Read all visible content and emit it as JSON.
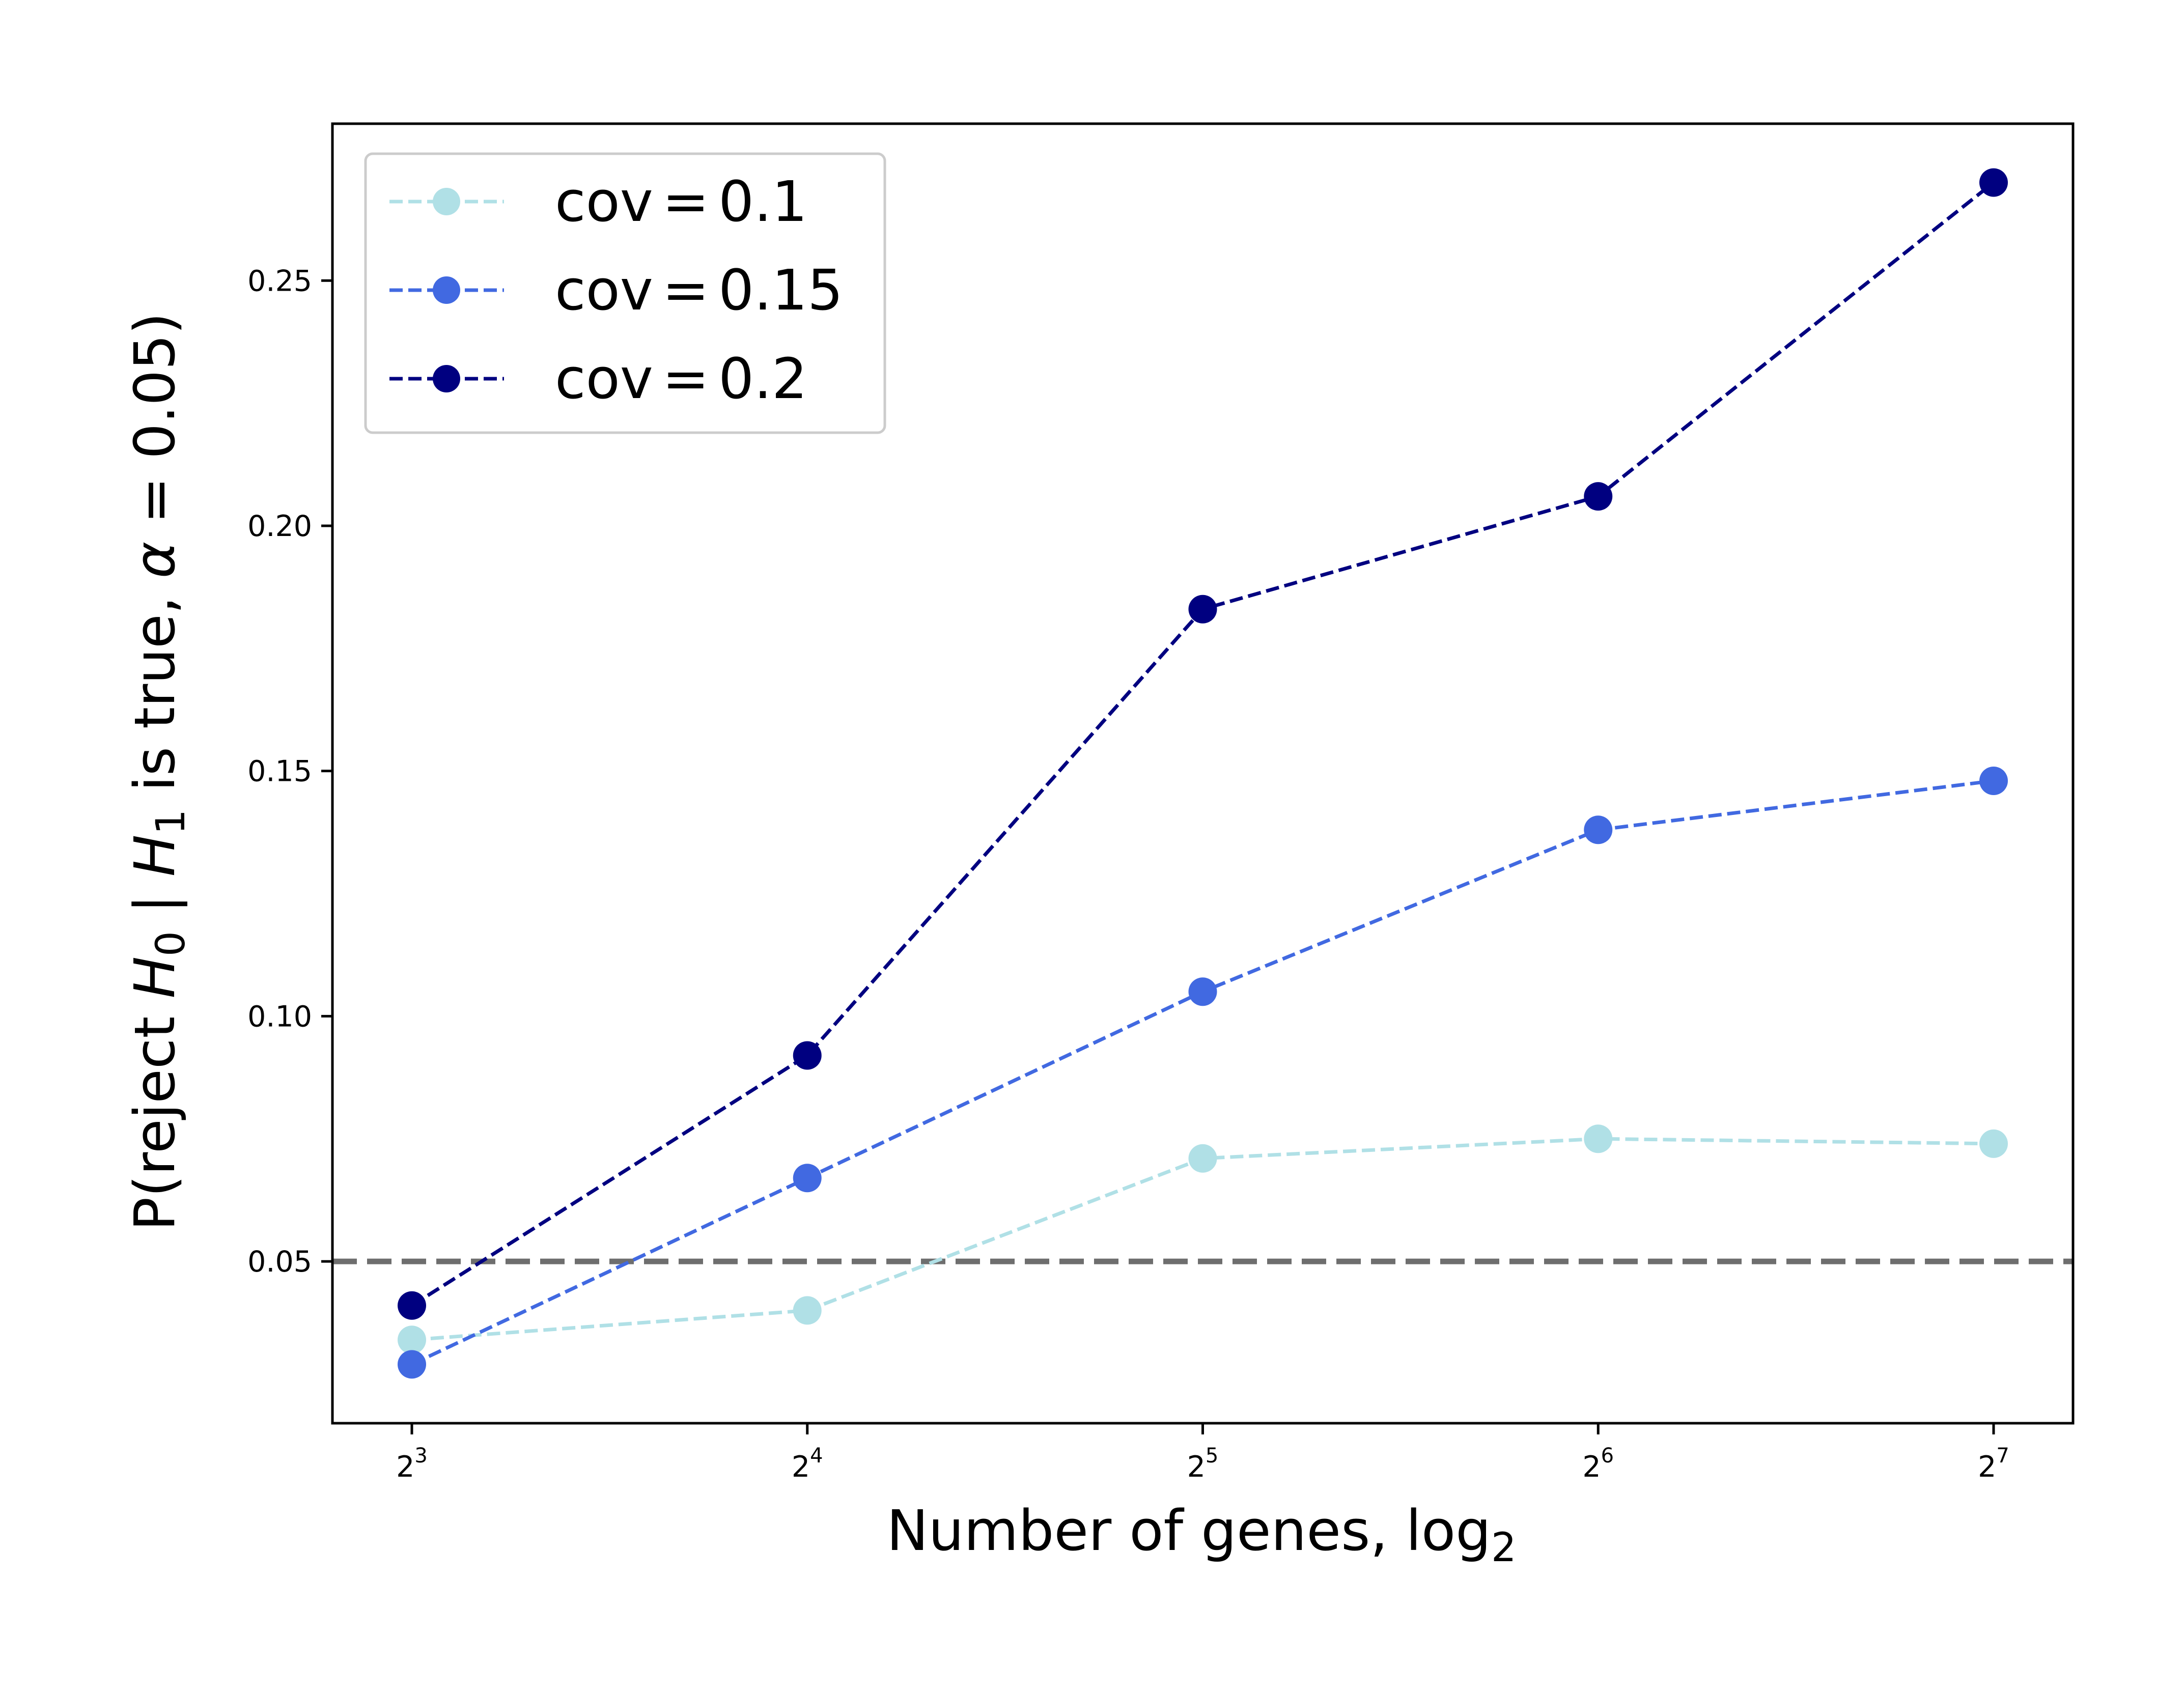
{
  "chart_data": {
    "type": "line",
    "x_scale": "log2",
    "x": [
      8,
      16,
      32,
      64,
      128
    ],
    "x_tick_labels": [
      {
        "base": "2",
        "exp": "3"
      },
      {
        "base": "2",
        "exp": "4"
      },
      {
        "base": "2",
        "exp": "5"
      },
      {
        "base": "2",
        "exp": "6"
      },
      {
        "base": "2",
        "exp": "7"
      }
    ],
    "xlabel": {
      "text": "Number of genes, log",
      "subscript": "2"
    },
    "ylabel": {
      "pre": "P(reject ",
      "h0": "H",
      "h0_sub": "0",
      "mid": " | ",
      "h1": "H",
      "h1_sub": "1",
      "mid2": " is true, ",
      "alpha": "α",
      "post": " = 0.05)"
    },
    "ylim": [
      0.017,
      0.282
    ],
    "y_ticks": [
      "0.05",
      "0.10",
      "0.15",
      "0.20",
      "0.25"
    ],
    "reference_line": {
      "y": 0.05,
      "color": "#6e6e6e",
      "style": "dashed"
    },
    "legend_position": "upper-left",
    "grid": false,
    "series": [
      {
        "name": "cov = 0.1",
        "label_prefix": "cov",
        "label_op": "=",
        "label_value": "0.1",
        "color": "#b0e0e6",
        "values": [
          0.034,
          0.04,
          0.071,
          0.075,
          0.074
        ]
      },
      {
        "name": "cov = 0.15",
        "label_prefix": "cov",
        "label_op": "=",
        "label_value": "0.15",
        "color": "#4169e1",
        "values": [
          0.029,
          0.067,
          0.105,
          0.138,
          0.148
        ]
      },
      {
        "name": "cov = 0.2",
        "label_prefix": "cov",
        "label_op": "=",
        "label_value": "0.2",
        "color": "#000080",
        "values": [
          0.041,
          0.092,
          0.183,
          0.206,
          0.27
        ]
      }
    ]
  }
}
